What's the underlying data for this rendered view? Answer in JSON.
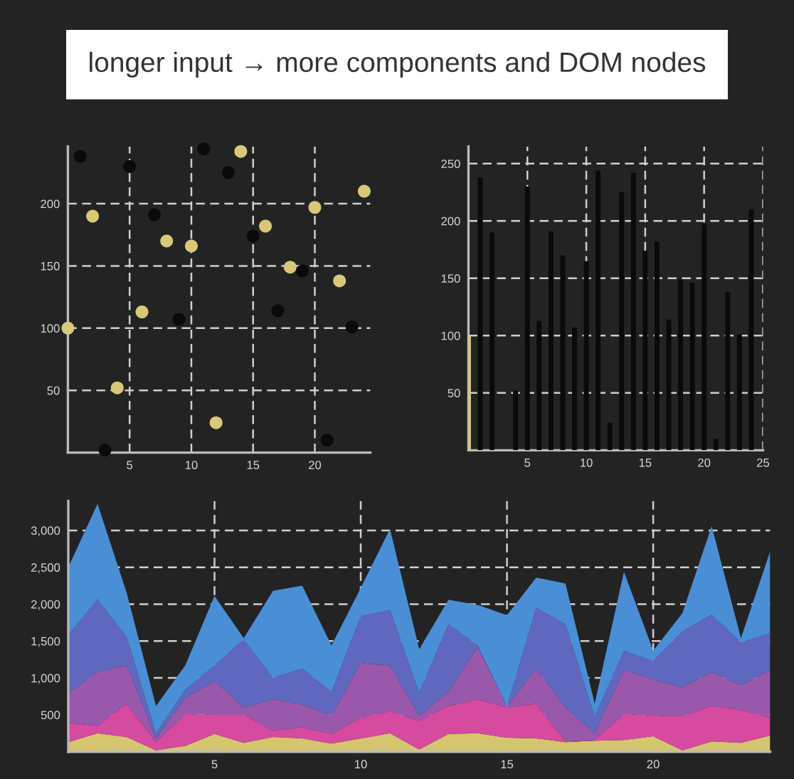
{
  "chart_data": [
    {
      "type": "scatter",
      "title": "longer input → more components and DOM nodes",
      "marker": "circle",
      "grid": true,
      "xlim": [
        0,
        24.5
      ],
      "ylim": [
        0,
        246
      ],
      "xticks": [
        5,
        10,
        15,
        20
      ],
      "yticks": [
        50,
        100,
        150,
        200
      ],
      "series": [
        {
          "color": "#d9c878",
          "x": [
            0,
            2,
            4,
            6,
            8,
            10,
            12,
            14,
            16,
            18,
            20,
            22,
            24
          ],
          "values": [
            100,
            190,
            52,
            113,
            170,
            166,
            24,
            242,
            182,
            149,
            197,
            138,
            210
          ]
        },
        {
          "color": "#0a0a0a",
          "x": [
            1,
            3,
            5,
            7,
            9,
            11,
            13,
            15,
            17,
            19,
            21,
            23
          ],
          "values": [
            238,
            2,
            230,
            191,
            107,
            244,
            225,
            174,
            114,
            146,
            10,
            101
          ]
        }
      ]
    },
    {
      "type": "bar",
      "grid": true,
      "xlim": [
        0,
        25
      ],
      "ylim": [
        0,
        265
      ],
      "xticks": [
        5,
        10,
        15,
        20,
        25
      ],
      "yticks": [
        50,
        100,
        150,
        200,
        250
      ],
      "x": [
        0,
        1,
        2,
        3,
        4,
        5,
        6,
        7,
        8,
        9,
        10,
        11,
        12,
        13,
        14,
        15,
        16,
        17,
        18,
        19,
        20,
        21,
        22,
        23,
        24
      ],
      "values": [
        100,
        238,
        190,
        null,
        52,
        230,
        113,
        191,
        170,
        107,
        165,
        244,
        24,
        225,
        242,
        174,
        182,
        114,
        149,
        146,
        197,
        10,
        138,
        101,
        210
      ],
      "colors": [
        "#d9c878",
        "#0a0a0a",
        "#0a0a0a",
        "#0a0a0a",
        "#0a0a0a",
        "#0a0a0a",
        "#0a0a0a",
        "#0a0a0a",
        "#0a0a0a",
        "#0a0a0a",
        "#0a0a0a",
        "#0a0a0a",
        "#0a0a0a",
        "#0a0a0a",
        "#0a0a0a",
        "#0a0a0a",
        "#0a0a0a",
        "#0a0a0a",
        "#0a0a0a",
        "#0a0a0a",
        "#0a0a0a",
        "#0a0a0a",
        "#0a0a0a",
        "#0a0a0a",
        "#0a0a0a"
      ]
    },
    {
      "type": "area",
      "stacked": true,
      "grid": true,
      "xlim": [
        0,
        24
      ],
      "ylim": [
        0,
        3400
      ],
      "xticks": [
        5,
        10,
        15,
        20
      ],
      "yticks": [
        {
          "value": 500,
          "label": "500"
        },
        {
          "value": 1000,
          "label": "1,000"
        },
        {
          "value": 1500,
          "label": "1,500"
        },
        {
          "value": 2000,
          "label": "2,000"
        },
        {
          "value": 2500,
          "label": "2,500"
        },
        {
          "value": 3000,
          "label": "3,000"
        }
      ],
      "x": [
        0,
        1,
        2,
        3,
        4,
        5,
        6,
        7,
        8,
        9,
        10,
        11,
        12,
        13,
        14,
        15,
        16,
        17,
        18,
        19,
        20,
        21,
        22,
        23,
        24
      ],
      "series": [
        {
          "color": "#d4c56e",
          "values": [
            130,
            250,
            200,
            20,
            80,
            240,
            120,
            200,
            180,
            110,
            180,
            250,
            30,
            240,
            250,
            190,
            180,
            130,
            150,
            160,
            210,
            20,
            140,
            120,
            220
          ]
        },
        {
          "color": "#d64aa0",
          "values": [
            260,
            100,
            450,
            110,
            430,
            260,
            380,
            90,
            150,
            130,
            280,
            300,
            390,
            380,
            460,
            410,
            470,
            10,
            10,
            350,
            280,
            460,
            480,
            450,
            240
          ]
        },
        {
          "color": "#9a58ad",
          "values": [
            400,
            730,
            520,
            50,
            220,
            460,
            100,
            420,
            310,
            250,
            740,
            620,
            70,
            190,
            710,
            10,
            480,
            460,
            90,
            600,
            490,
            390,
            460,
            330,
            650
          ]
        },
        {
          "color": "#5f68be",
          "values": [
            790,
            990,
            380,
            70,
            110,
            210,
            920,
            290,
            490,
            320,
            640,
            750,
            310,
            920,
            20,
            0,
            820,
            1130,
            230,
            260,
            250,
            760,
            780,
            580,
            500
          ]
        },
        {
          "color": "#4a8fd6",
          "values": [
            920,
            1290,
            600,
            370,
            330,
            940,
            20,
            1180,
            1120,
            630,
            380,
            1100,
            590,
            330,
            550,
            1240,
            410,
            550,
            170,
            1070,
            140,
            250,
            1200,
            60,
            1110
          ]
        }
      ]
    }
  ]
}
